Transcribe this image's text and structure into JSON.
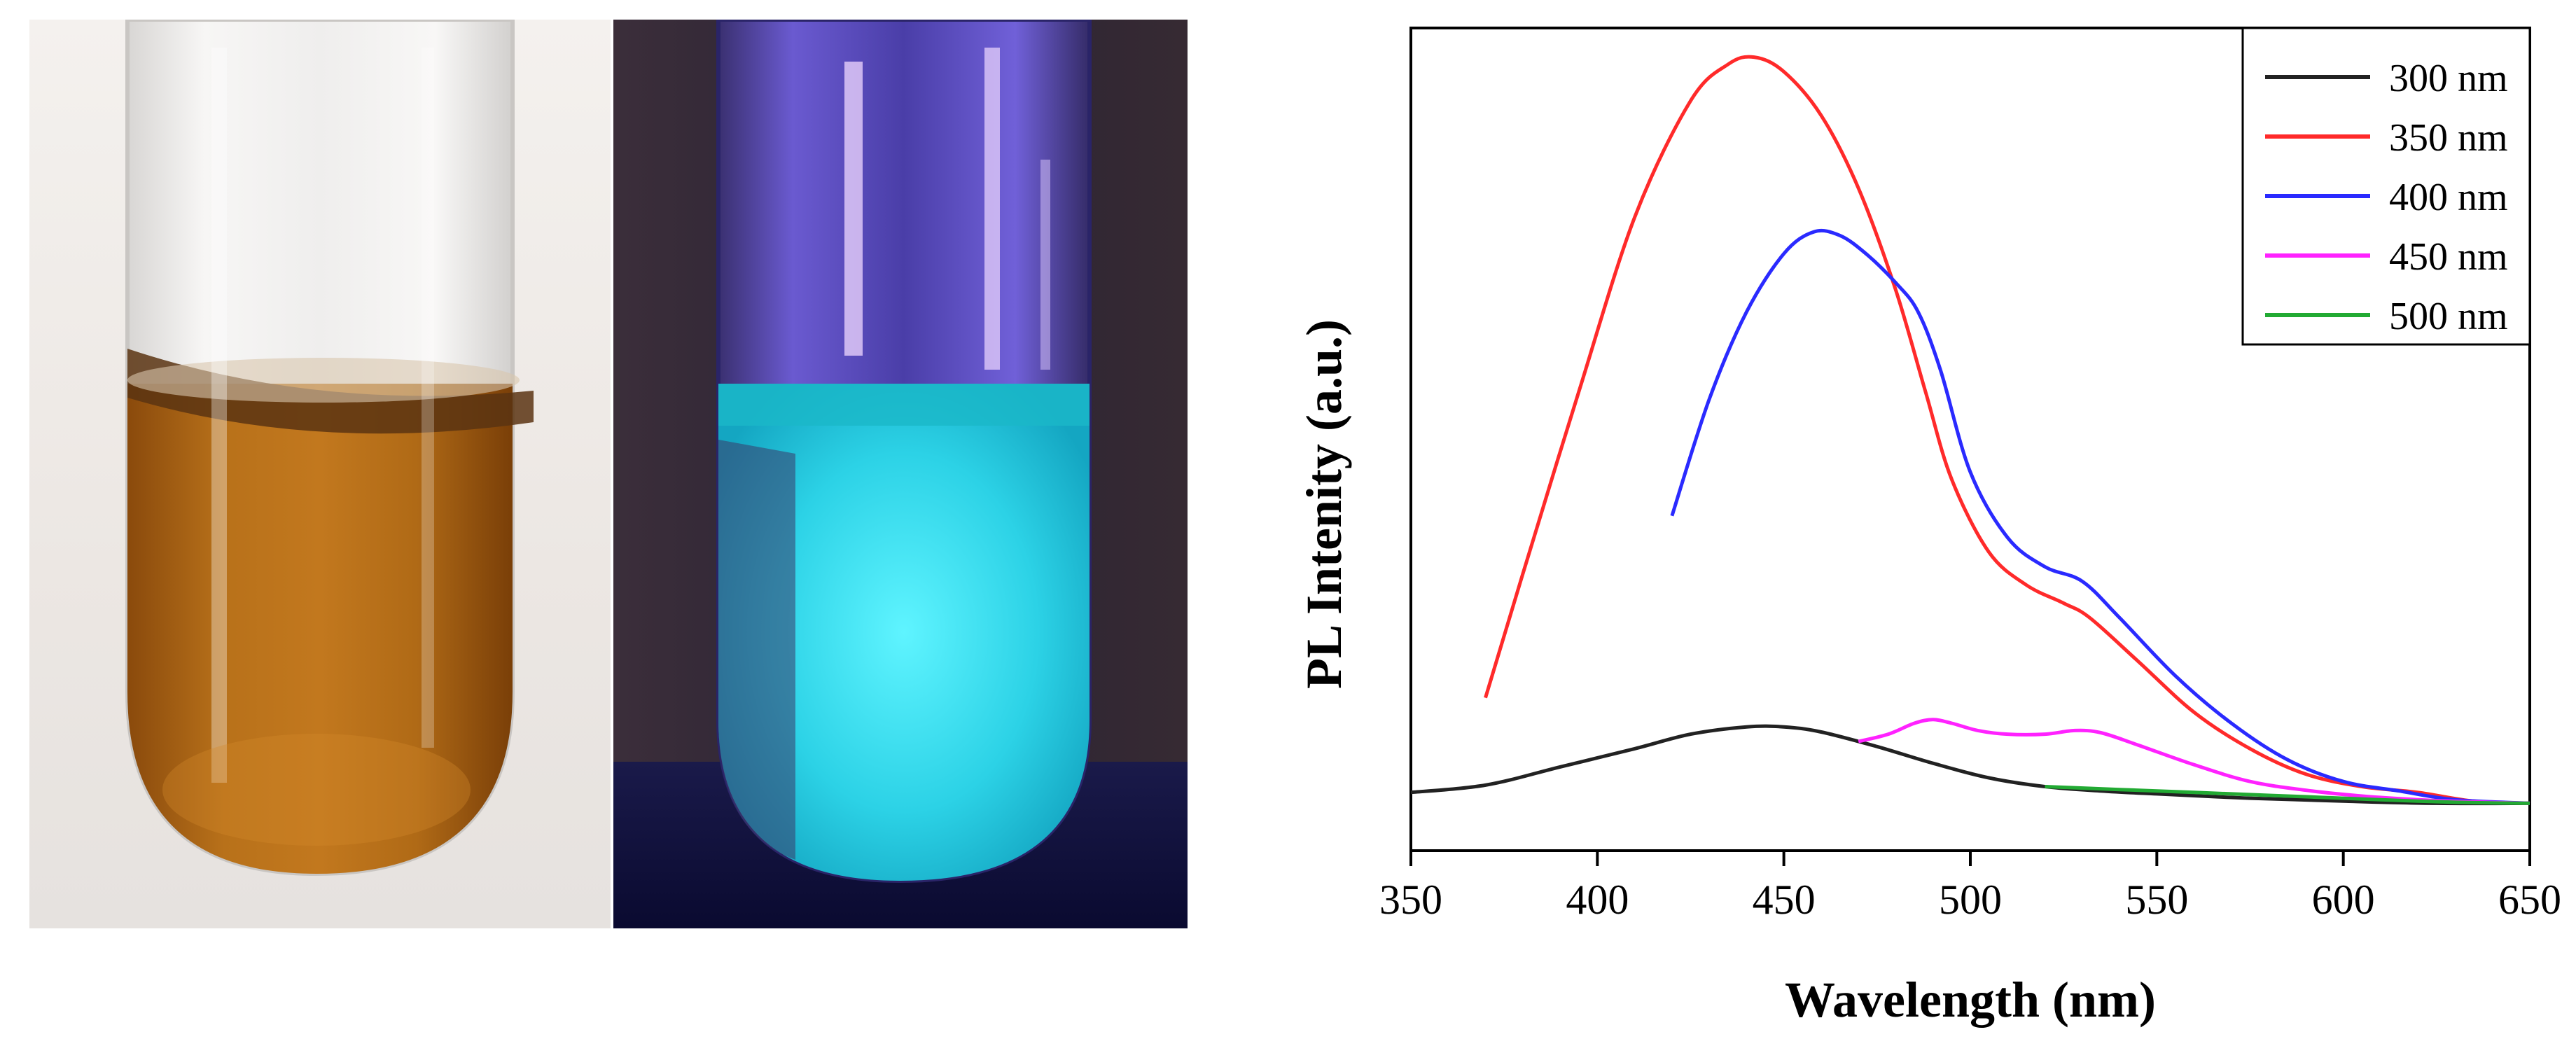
{
  "photos": [
    {
      "name": "test-tube-daylight",
      "description_color": "#b56a12"
    },
    {
      "name": "test-tube-uv",
      "description_color": "#22d8e8"
    }
  ],
  "chart_data": {
    "type": "line",
    "title": "",
    "xlabel": "Wavelength (nm)",
    "ylabel": "PL Intenity (a.u.)",
    "xlim": [
      350,
      650
    ],
    "ylim": [
      -0.08,
      1.05
    ],
    "xticks": [
      350,
      400,
      450,
      500,
      550,
      600,
      650
    ],
    "legend_position": "top-right",
    "series": [
      {
        "name": "300 nm",
        "color": "#222222",
        "x": [
          350,
          370,
          390,
          410,
          425,
          440,
          450,
          460,
          475,
          490,
          505,
          520,
          535,
          550,
          575,
          600,
          625,
          650
        ],
        "y": [
          0.0,
          0.01,
          0.035,
          0.06,
          0.08,
          0.09,
          0.09,
          0.083,
          0.063,
          0.04,
          0.02,
          0.008,
          0.002,
          -0.002,
          -0.008,
          -0.012,
          -0.015,
          -0.015
        ]
      },
      {
        "name": "350 nm",
        "color": "#ff2a2a",
        "x": [
          370,
          380,
          395,
          410,
          425,
          435,
          442,
          450,
          460,
          470,
          480,
          488,
          495,
          505,
          515,
          525,
          532,
          545,
          560,
          575,
          590,
          605,
          620,
          635,
          650
        ],
        "y": [
          0.13,
          0.3,
          0.55,
          0.79,
          0.95,
          1.0,
          1.01,
          0.99,
          0.93,
          0.83,
          0.69,
          0.55,
          0.43,
          0.33,
          0.285,
          0.26,
          0.24,
          0.18,
          0.11,
          0.06,
          0.025,
          0.008,
          0.0,
          -0.012,
          -0.015
        ]
      },
      {
        "name": "400 nm",
        "color": "#2a2aff",
        "x": [
          420,
          430,
          440,
          450,
          458,
          465,
          472,
          480,
          486,
          492,
          500,
          510,
          520,
          530,
          540,
          555,
          570,
          585,
          600,
          615,
          630,
          650
        ],
        "y": [
          0.38,
          0.54,
          0.66,
          0.74,
          0.77,
          0.765,
          0.74,
          0.7,
          0.66,
          0.58,
          0.44,
          0.35,
          0.31,
          0.29,
          0.24,
          0.16,
          0.095,
          0.045,
          0.015,
          0.002,
          -0.01,
          -0.015
        ]
      },
      {
        "name": "450 nm",
        "color": "#ff22ff",
        "x": [
          470,
          478,
          485,
          490,
          495,
          502,
          510,
          520,
          528,
          535,
          545,
          560,
          575,
          590,
          605,
          620,
          635,
          650
        ],
        "y": [
          0.07,
          0.08,
          0.095,
          0.1,
          0.095,
          0.085,
          0.08,
          0.08,
          0.085,
          0.082,
          0.065,
          0.038,
          0.015,
          0.003,
          -0.005,
          -0.01,
          -0.013,
          -0.015
        ]
      },
      {
        "name": "500 nm",
        "color": "#22aa33",
        "x": [
          520,
          540,
          560,
          580,
          600,
          620,
          635,
          650
        ],
        "y": [
          0.008,
          0.004,
          0.0,
          -0.004,
          -0.008,
          -0.012,
          -0.014,
          -0.015
        ]
      }
    ]
  }
}
